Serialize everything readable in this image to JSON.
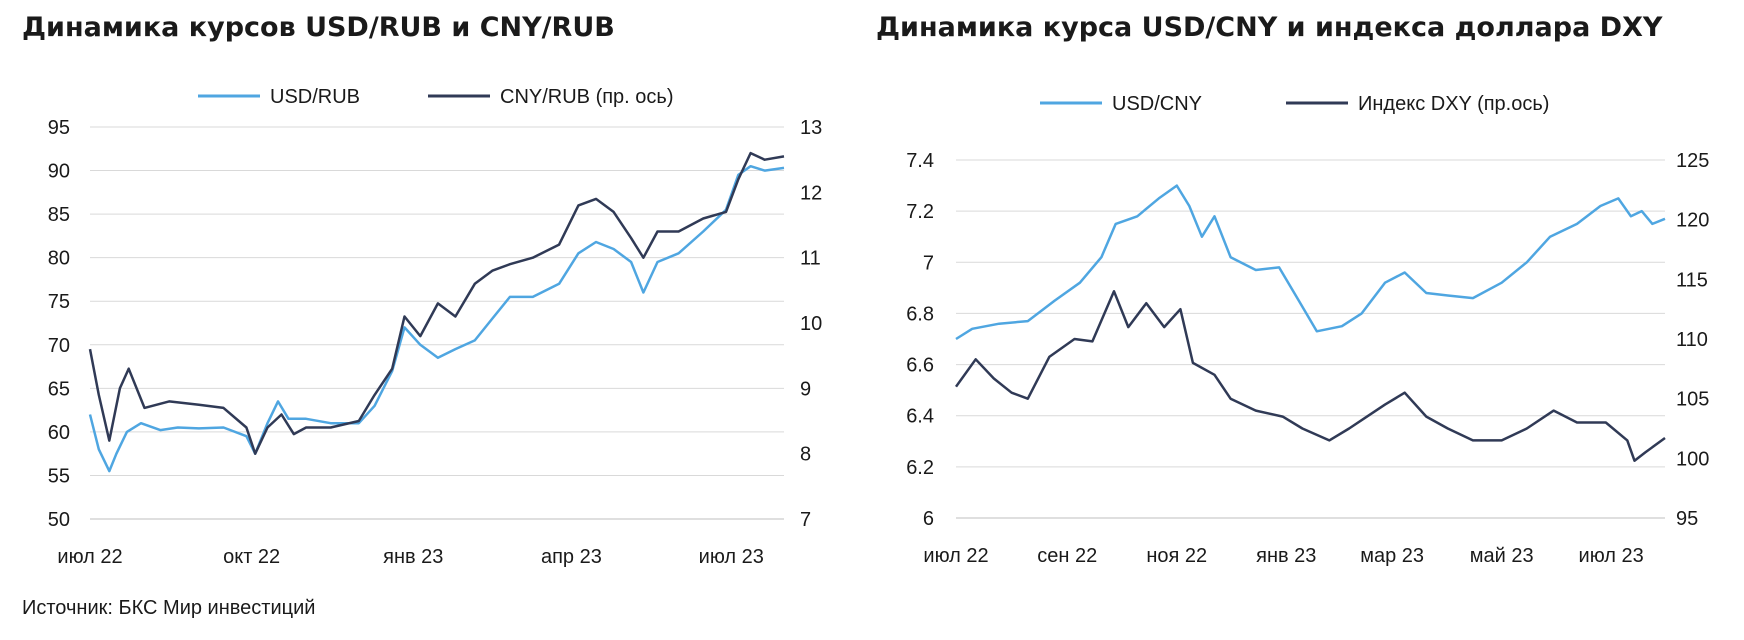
{
  "source_label": "Источник: БКС Мир инвестиций",
  "colors": {
    "light": "#4fa6e1",
    "dark": "#303a56",
    "grid": "#d9d9d9"
  },
  "chart_data": [
    {
      "type": "line",
      "title": "Динамика курсов USD/RUB и CNY/RUB",
      "x_tick_labels": [
        "июл 22",
        "окт 22",
        "янв 23",
        "апр 23",
        "июл 23"
      ],
      "x_tick_dates": [
        "2022-07-01",
        "2022-10-01",
        "2023-01-01",
        "2023-04-01",
        "2023-07-01"
      ],
      "x_range": [
        "2022-07-01",
        "2023-07-31"
      ],
      "y_left": {
        "min": 50,
        "max": 95,
        "ticks": [
          50,
          55,
          60,
          65,
          70,
          75,
          80,
          85,
          90,
          95
        ]
      },
      "y_right": {
        "min": 7,
        "max": 13,
        "ticks": [
          7,
          8,
          9,
          10,
          11,
          12,
          13
        ]
      },
      "grid": true,
      "legend_position": "top",
      "series": [
        {
          "name": "USD/RUB",
          "axis": "left",
          "color": "#4fa6e1",
          "points": [
            [
              "2022-07-01",
              62.0
            ],
            [
              "2022-07-06",
              58.0
            ],
            [
              "2022-07-12",
              55.5
            ],
            [
              "2022-07-16",
              57.5
            ],
            [
              "2022-07-22",
              60.0
            ],
            [
              "2022-07-30",
              61.0
            ],
            [
              "2022-08-10",
              60.2
            ],
            [
              "2022-08-20",
              60.5
            ],
            [
              "2022-09-01",
              60.4
            ],
            [
              "2022-09-15",
              60.5
            ],
            [
              "2022-09-28",
              59.5
            ],
            [
              "2022-10-03",
              57.5
            ],
            [
              "2022-10-10",
              61.0
            ],
            [
              "2022-10-16",
              63.5
            ],
            [
              "2022-10-22",
              61.5
            ],
            [
              "2022-11-01",
              61.5
            ],
            [
              "2022-11-15",
              61.0
            ],
            [
              "2022-12-01",
              61.0
            ],
            [
              "2022-12-10",
              63.0
            ],
            [
              "2022-12-20",
              67.0
            ],
            [
              "2022-12-27",
              72.0
            ],
            [
              "2023-01-05",
              70.0
            ],
            [
              "2023-01-15",
              68.5
            ],
            [
              "2023-01-25",
              69.5
            ],
            [
              "2023-02-05",
              70.5
            ],
            [
              "2023-02-15",
              73.0
            ],
            [
              "2023-02-25",
              75.5
            ],
            [
              "2023-03-10",
              75.5
            ],
            [
              "2023-03-25",
              77.0
            ],
            [
              "2023-04-05",
              80.5
            ],
            [
              "2023-04-15",
              81.8
            ],
            [
              "2023-04-25",
              81.0
            ],
            [
              "2023-05-05",
              79.5
            ],
            [
              "2023-05-12",
              76.0
            ],
            [
              "2023-05-20",
              79.5
            ],
            [
              "2023-06-01",
              80.5
            ],
            [
              "2023-06-15",
              83.0
            ],
            [
              "2023-06-28",
              85.5
            ],
            [
              "2023-07-05",
              89.5
            ],
            [
              "2023-07-12",
              90.5
            ],
            [
              "2023-07-20",
              90.0
            ],
            [
              "2023-07-31",
              90.3
            ]
          ]
        },
        {
          "name": "CNY/RUB (пр. ось)",
          "axis": "right",
          "color": "#303a56",
          "points": [
            [
              "2022-07-01",
              9.6
            ],
            [
              "2022-07-06",
              8.9
            ],
            [
              "2022-07-12",
              8.2
            ],
            [
              "2022-07-18",
              9.0
            ],
            [
              "2022-07-23",
              9.3
            ],
            [
              "2022-08-01",
              8.7
            ],
            [
              "2022-08-15",
              8.8
            ],
            [
              "2022-09-01",
              8.75
            ],
            [
              "2022-09-15",
              8.7
            ],
            [
              "2022-09-28",
              8.4
            ],
            [
              "2022-10-03",
              8.0
            ],
            [
              "2022-10-10",
              8.4
            ],
            [
              "2022-10-18",
              8.6
            ],
            [
              "2022-10-25",
              8.3
            ],
            [
              "2022-11-01",
              8.4
            ],
            [
              "2022-11-15",
              8.4
            ],
            [
              "2022-12-01",
              8.5
            ],
            [
              "2022-12-10",
              8.9
            ],
            [
              "2022-12-20",
              9.3
            ],
            [
              "2022-12-27",
              10.1
            ],
            [
              "2023-01-05",
              9.8
            ],
            [
              "2023-01-15",
              10.3
            ],
            [
              "2023-01-25",
              10.1
            ],
            [
              "2023-02-05",
              10.6
            ],
            [
              "2023-02-15",
              10.8
            ],
            [
              "2023-02-25",
              10.9
            ],
            [
              "2023-03-10",
              11.0
            ],
            [
              "2023-03-25",
              11.2
            ],
            [
              "2023-04-05",
              11.8
            ],
            [
              "2023-04-15",
              11.9
            ],
            [
              "2023-04-25",
              11.7
            ],
            [
              "2023-05-05",
              11.3
            ],
            [
              "2023-05-12",
              11.0
            ],
            [
              "2023-05-20",
              11.4
            ],
            [
              "2023-06-01",
              11.4
            ],
            [
              "2023-06-15",
              11.6
            ],
            [
              "2023-06-28",
              11.7
            ],
            [
              "2023-07-05",
              12.2
            ],
            [
              "2023-07-12",
              12.6
            ],
            [
              "2023-07-20",
              12.5
            ],
            [
              "2023-07-31",
              12.55
            ]
          ]
        }
      ]
    },
    {
      "type": "line",
      "title": "Динамика курса USD/CNY и индекса доллара DXY",
      "x_tick_labels": [
        "июл 22",
        "сен 22",
        "ноя 22",
        "янв 23",
        "мар 23",
        "май 23",
        "июл 23"
      ],
      "x_tick_dates": [
        "2022-07-01",
        "2022-09-01",
        "2022-11-01",
        "2023-01-01",
        "2023-03-01",
        "2023-05-01",
        "2023-07-01"
      ],
      "x_range": [
        "2022-07-01",
        "2023-07-31"
      ],
      "y_left": {
        "min": 6,
        "max": 7.4,
        "ticks": [
          6,
          6.2,
          6.4,
          6.6,
          6.8,
          7,
          7.2,
          7.4
        ]
      },
      "y_right": {
        "min": 95,
        "max": 125,
        "ticks": [
          95,
          100,
          105,
          110,
          115,
          120,
          125
        ]
      },
      "grid": true,
      "legend_position": "top",
      "series": [
        {
          "name": "USD/CNY",
          "axis": "left",
          "color": "#4fa6e1",
          "points": [
            [
              "2022-07-01",
              6.7
            ],
            [
              "2022-07-10",
              6.74
            ],
            [
              "2022-07-25",
              6.76
            ],
            [
              "2022-08-10",
              6.77
            ],
            [
              "2022-08-25",
              6.85
            ],
            [
              "2022-09-08",
              6.92
            ],
            [
              "2022-09-20",
              7.02
            ],
            [
              "2022-09-28",
              7.15
            ],
            [
              "2022-10-10",
              7.18
            ],
            [
              "2022-10-22",
              7.25
            ],
            [
              "2022-11-01",
              7.3
            ],
            [
              "2022-11-08",
              7.22
            ],
            [
              "2022-11-15",
              7.1
            ],
            [
              "2022-11-22",
              7.18
            ],
            [
              "2022-12-01",
              7.02
            ],
            [
              "2022-12-15",
              6.97
            ],
            [
              "2022-12-28",
              6.98
            ],
            [
              "2023-01-08",
              6.85
            ],
            [
              "2023-01-18",
              6.73
            ],
            [
              "2023-02-01",
              6.75
            ],
            [
              "2023-02-12",
              6.8
            ],
            [
              "2023-02-25",
              6.92
            ],
            [
              "2023-03-08",
              6.96
            ],
            [
              "2023-03-20",
              6.88
            ],
            [
              "2023-04-01",
              6.87
            ],
            [
              "2023-04-15",
              6.86
            ],
            [
              "2023-05-01",
              6.92
            ],
            [
              "2023-05-15",
              7.0
            ],
            [
              "2023-05-28",
              7.1
            ],
            [
              "2023-06-12",
              7.15
            ],
            [
              "2023-06-25",
              7.22
            ],
            [
              "2023-07-05",
              7.25
            ],
            [
              "2023-07-12",
              7.18
            ],
            [
              "2023-07-18",
              7.2
            ],
            [
              "2023-07-24",
              7.15
            ],
            [
              "2023-07-31",
              7.17
            ]
          ]
        },
        {
          "name": "Индекс DXY (пр.ось)",
          "axis": "right",
          "color": "#303a56",
          "points": [
            [
              "2022-07-01",
              106.0
            ],
            [
              "2022-07-12",
              108.3
            ],
            [
              "2022-07-22",
              106.7
            ],
            [
              "2022-08-01",
              105.5
            ],
            [
              "2022-08-10",
              105.0
            ],
            [
              "2022-08-22",
              108.5
            ],
            [
              "2022-09-05",
              110.0
            ],
            [
              "2022-09-15",
              109.8
            ],
            [
              "2022-09-27",
              114.0
            ],
            [
              "2022-10-05",
              111.0
            ],
            [
              "2022-10-15",
              113.0
            ],
            [
              "2022-10-25",
              111.0
            ],
            [
              "2022-11-03",
              112.5
            ],
            [
              "2022-11-10",
              108.0
            ],
            [
              "2022-11-22",
              107.0
            ],
            [
              "2022-12-01",
              105.0
            ],
            [
              "2022-12-15",
              104.0
            ],
            [
              "2022-12-30",
              103.5
            ],
            [
              "2023-01-10",
              102.5
            ],
            [
              "2023-01-25",
              101.5
            ],
            [
              "2023-02-05",
              102.5
            ],
            [
              "2023-02-15",
              103.5
            ],
            [
              "2023-02-25",
              104.5
            ],
            [
              "2023-03-08",
              105.5
            ],
            [
              "2023-03-20",
              103.5
            ],
            [
              "2023-04-01",
              102.5
            ],
            [
              "2023-04-15",
              101.5
            ],
            [
              "2023-05-01",
              101.5
            ],
            [
              "2023-05-15",
              102.5
            ],
            [
              "2023-05-30",
              104.0
            ],
            [
              "2023-06-12",
              103.0
            ],
            [
              "2023-06-28",
              103.0
            ],
            [
              "2023-07-10",
              101.5
            ],
            [
              "2023-07-14",
              99.8
            ],
            [
              "2023-07-20",
              100.5
            ],
            [
              "2023-07-31",
              101.7
            ]
          ]
        }
      ]
    }
  ]
}
